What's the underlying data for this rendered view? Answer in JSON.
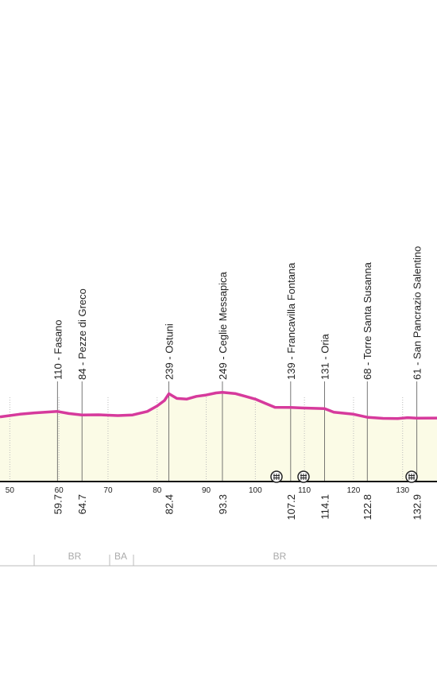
{
  "chart_data": {
    "type": "line",
    "xlim": [
      48,
      137
    ],
    "ylim": [
      -400,
      1370
    ],
    "xticks": [
      50,
      60,
      70,
      80,
      90,
      100,
      110,
      120,
      130
    ],
    "profile": {
      "color": "#d63a9c",
      "km": [
        48,
        52,
        55,
        59.7,
        62,
        64.7,
        68,
        72,
        75,
        78,
        80,
        81.5,
        82.4,
        84,
        86,
        88,
        90,
        92,
        93.3,
        96,
        98,
        100,
        102,
        104,
        107.2,
        110,
        114.1,
        116,
        120,
        122.8,
        126,
        129,
        131,
        132.9,
        137
      ],
      "elevation": [
        70,
        90,
        100,
        110,
        95,
        84,
        86,
        80,
        85,
        110,
        150,
        190,
        239,
        205,
        200,
        220,
        230,
        245,
        249,
        240,
        220,
        200,
        170,
        140,
        139,
        135,
        131,
        105,
        90,
        68,
        60,
        58,
        65,
        61,
        62
      ]
    },
    "places": [
      {
        "label": "110 - Fasano",
        "km": 59.7
      },
      {
        "label": "84 - Pezze di Greco",
        "km": 64.7
      },
      {
        "label": "239 - Ostuni",
        "km": 82.4
      },
      {
        "label": "249 - Ceglie Messapica",
        "km": 93.3
      },
      {
        "label": "139 - Francavilla Fontana",
        "km": 107.2
      },
      {
        "label": "131 - Oria",
        "km": 114.1
      },
      {
        "label": "68 - Torre Santa Susanna",
        "km": 122.8
      },
      {
        "label": "61 - San Pancrazio Salentino",
        "km": 132.9
      }
    ],
    "provinces": [
      "BR",
      "BA",
      "BR"
    ]
  }
}
